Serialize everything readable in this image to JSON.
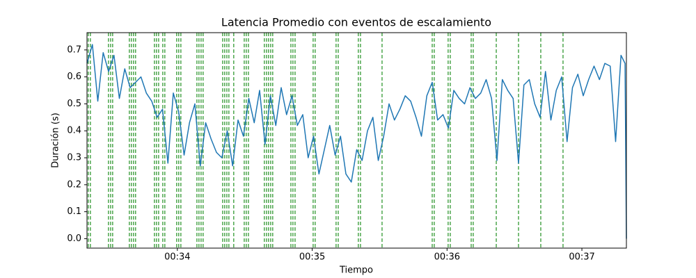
{
  "chart_data": {
    "type": "line",
    "title": "Latencia Promedio con eventos de escalamiento",
    "x_label": "Tiempo",
    "y_label": "Duración (s)",
    "x": [
      33.33,
      33.37,
      33.41,
      33.45,
      33.49,
      33.53,
      33.57,
      33.61,
      33.65,
      33.69,
      33.73,
      33.77,
      33.81,
      33.85,
      33.89,
      33.93,
      33.97,
      34.01,
      34.05,
      34.09,
      34.13,
      34.17,
      34.21,
      34.25,
      34.29,
      34.33,
      34.37,
      34.41,
      34.45,
      34.49,
      34.53,
      34.57,
      34.61,
      34.65,
      34.69,
      34.73,
      34.77,
      34.81,
      34.85,
      34.89,
      34.93,
      34.97,
      35.01,
      35.05,
      35.09,
      35.13,
      35.17,
      35.21,
      35.25,
      35.29,
      35.33,
      35.37,
      35.41,
      35.45,
      35.49,
      35.53,
      35.57,
      35.61,
      35.65,
      35.69,
      35.73,
      35.77,
      35.81,
      35.85,
      35.89,
      35.93,
      35.97,
      36.01,
      36.05,
      36.09,
      36.13,
      36.17,
      36.21,
      36.25,
      36.29,
      36.33,
      36.37,
      36.41,
      36.45,
      36.49,
      36.53,
      36.57,
      36.61,
      36.65,
      36.69,
      36.73,
      36.77,
      36.81,
      36.85,
      36.89,
      36.93,
      36.97,
      37.01,
      37.05,
      37.09,
      37.13,
      37.17,
      37.21,
      37.25,
      37.29,
      37.32,
      37.33
    ],
    "series": [
      {
        "color": "#1f77b4",
        "values": [
          0.65,
          0.72,
          0.51,
          0.69,
          0.62,
          0.68,
          0.52,
          0.63,
          0.56,
          0.58,
          0.6,
          0.54,
          0.51,
          0.45,
          0.48,
          0.28,
          0.54,
          0.47,
          0.31,
          0.43,
          0.5,
          0.27,
          0.43,
          0.37,
          0.32,
          0.3,
          0.4,
          0.27,
          0.44,
          0.38,
          0.52,
          0.43,
          0.55,
          0.35,
          0.53,
          0.42,
          0.56,
          0.46,
          0.53,
          0.42,
          0.46,
          0.3,
          0.38,
          0.24,
          0.33,
          0.42,
          0.31,
          0.38,
          0.24,
          0.21,
          0.33,
          0.29,
          0.4,
          0.45,
          0.29,
          0.38,
          0.5,
          0.44,
          0.48,
          0.53,
          0.51,
          0.45,
          0.38,
          0.53,
          0.58,
          0.44,
          0.46,
          0.41,
          0.55,
          0.52,
          0.5,
          0.56,
          0.52,
          0.54,
          0.59,
          0.52,
          0.29,
          0.59,
          0.55,
          0.52,
          0.28,
          0.57,
          0.59,
          0.5,
          0.45,
          0.62,
          0.44,
          0.55,
          0.6,
          0.36,
          0.56,
          0.61,
          0.53,
          0.59,
          0.64,
          0.59,
          0.65,
          0.64,
          0.36,
          0.68,
          0.65,
          0
        ]
      }
    ],
    "events": {
      "color": "green",
      "x": [
        33.339,
        33.355,
        33.489,
        33.505,
        33.52,
        33.644,
        33.659,
        33.675,
        33.69,
        33.83,
        33.845,
        33.861,
        33.892,
        33.907,
        33.995,
        34.01,
        34.026,
        34.145,
        34.16,
        34.176,
        34.191,
        34.336,
        34.351,
        34.367,
        34.382,
        34.418,
        34.496,
        34.511,
        34.527,
        34.645,
        34.661,
        34.676,
        34.692,
        34.707,
        34.842,
        34.857,
        34.873,
        35.007,
        35.022,
        35.177,
        35.193,
        35.342,
        35.358,
        35.518,
        35.89,
        35.905,
        36.008,
        36.024,
        36.179,
        36.194,
        36.365,
        36.53,
        36.695,
        36.86
      ]
    },
    "xlim": [
      33.33,
      37.33
    ],
    "xticks": [
      {
        "value": 34,
        "label": "00:34"
      },
      {
        "value": 35,
        "label": "00:35"
      },
      {
        "value": 36,
        "label": "00:36"
      },
      {
        "value": 37,
        "label": "00:37"
      }
    ],
    "ylim": [
      -0.035,
      0.764
    ],
    "yticks": [
      {
        "value": 0,
        "label": "0.0"
      },
      0.1,
      0.2,
      0.3,
      0.4,
      0.5,
      0.6,
      0.7
    ]
  }
}
